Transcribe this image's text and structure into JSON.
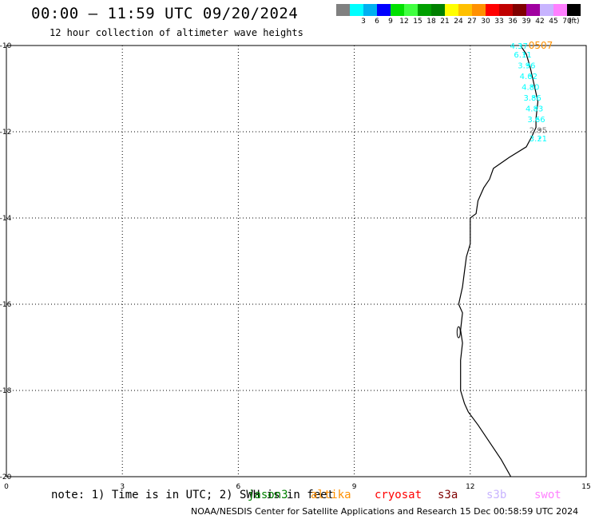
{
  "header": {
    "title": "00:00 – 11:59 UTC 09/20/2024",
    "subtitle": "12 hour collection of altimeter wave heights"
  },
  "legend": {
    "unit": "(ft)",
    "bins": [
      {
        "color": "#808080",
        "label": ""
      },
      {
        "color": "#00ffff",
        "label": "3"
      },
      {
        "color": "#00b0f0",
        "label": "6"
      },
      {
        "color": "#0000ff",
        "label": "9"
      },
      {
        "color": "#00e000",
        "label": "12"
      },
      {
        "color": "#40ff40",
        "label": "15"
      },
      {
        "color": "#00a000",
        "label": "18"
      },
      {
        "color": "#008000",
        "label": "21"
      },
      {
        "color": "#ffff00",
        "label": "24"
      },
      {
        "color": "#ffc000",
        "label": "27"
      },
      {
        "color": "#ff9000",
        "label": "30"
      },
      {
        "color": "#ff0000",
        "label": "33"
      },
      {
        "color": "#c00000",
        "label": "36"
      },
      {
        "color": "#800000",
        "label": "39"
      },
      {
        "color": "#a000a0",
        "label": "42"
      },
      {
        "color": "#c8b4ff",
        "label": "45"
      },
      {
        "color": "#ff80ff",
        "label": "70"
      },
      {
        "color": "#000000",
        "label": ""
      }
    ]
  },
  "map": {
    "x_ticks": [
      "0",
      "3",
      "6",
      "9",
      "12",
      "15"
    ],
    "y_ticks": [
      "-10",
      "-12",
      "-14",
      "-16",
      "-18",
      "-20"
    ],
    "lon_range": [
      0,
      15
    ],
    "lat_range": [
      -20,
      -10
    ],
    "coastline": [
      [
        13.3,
        -10.0
      ],
      [
        13.45,
        -10.2
      ],
      [
        13.55,
        -10.5
      ],
      [
        13.65,
        -10.9
      ],
      [
        13.75,
        -11.3
      ],
      [
        13.7,
        -11.7
      ],
      [
        13.7,
        -11.9
      ],
      [
        13.6,
        -12.1
      ],
      [
        13.45,
        -12.35
      ],
      [
        13.0,
        -12.6
      ],
      [
        12.6,
        -12.85
      ],
      [
        12.5,
        -13.1
      ],
      [
        12.35,
        -13.3
      ],
      [
        12.2,
        -13.6
      ],
      [
        12.15,
        -13.9
      ],
      [
        12.0,
        -14.0
      ],
      [
        12.0,
        -14.6
      ],
      [
        11.9,
        -14.9
      ],
      [
        11.85,
        -15.25
      ],
      [
        11.8,
        -15.6
      ],
      [
        11.75,
        -15.8
      ],
      [
        11.7,
        -16.0
      ],
      [
        11.8,
        -16.2
      ],
      [
        11.75,
        -16.6
      ],
      [
        11.8,
        -16.9
      ],
      [
        11.75,
        -17.3
      ],
      [
        11.75,
        -18.0
      ],
      [
        11.85,
        -18.3
      ],
      [
        11.95,
        -18.5
      ],
      [
        12.2,
        -18.8
      ],
      [
        12.5,
        -19.2
      ],
      [
        12.8,
        -19.6
      ],
      [
        13.05,
        -20.0
      ]
    ],
    "track_color": "#00ffff",
    "track_points": [
      {
        "lon": 13.3,
        "lat": -10.0,
        "label": "4.37",
        "color": "#00ffff"
      },
      {
        "lon": 13.4,
        "lat": -10.2,
        "label": "6.11",
        "color": "#00ffff"
      },
      {
        "lon": 13.5,
        "lat": -10.45,
        "label": "3.96",
        "color": "#00ffff"
      },
      {
        "lon": 13.55,
        "lat": -10.7,
        "label": "4.02",
        "color": "#00ffff"
      },
      {
        "lon": 13.6,
        "lat": -10.95,
        "label": "4.80",
        "color": "#00ffff"
      },
      {
        "lon": 13.65,
        "lat": -11.2,
        "label": "3.86",
        "color": "#00ffff"
      },
      {
        "lon": 13.7,
        "lat": -11.45,
        "label": "4.83",
        "color": "#00ffff"
      },
      {
        "lon": 13.75,
        "lat": -11.7,
        "label": "3.66",
        "color": "#00ffff"
      },
      {
        "lon": 13.8,
        "lat": -11.95,
        "label": "2.95",
        "color": "#808080"
      },
      {
        "lon": 13.8,
        "lat": -12.15,
        "label": "3.21",
        "color": "#00ffff"
      }
    ],
    "pass_label": {
      "text": "0507",
      "color": "#ff9000"
    }
  },
  "footer": {
    "note": "note: 1) Time is in UTC; 2) SWH is in feet",
    "satellites": [
      {
        "name": "jason3",
        "color": "#008000"
      },
      {
        "name": "altika",
        "color": "#ff9000"
      },
      {
        "name": "cryosat",
        "color": "#ff0000"
      },
      {
        "name": "s3a",
        "color": "#800000"
      },
      {
        "name": "s3b",
        "color": "#c8b4ff"
      },
      {
        "name": "swot",
        "color": "#ff80ff"
      }
    ],
    "credit": "NOAA/NESDIS Center for Satellite Applications and Research    15 Dec 00:58:59 UTC 2024"
  }
}
